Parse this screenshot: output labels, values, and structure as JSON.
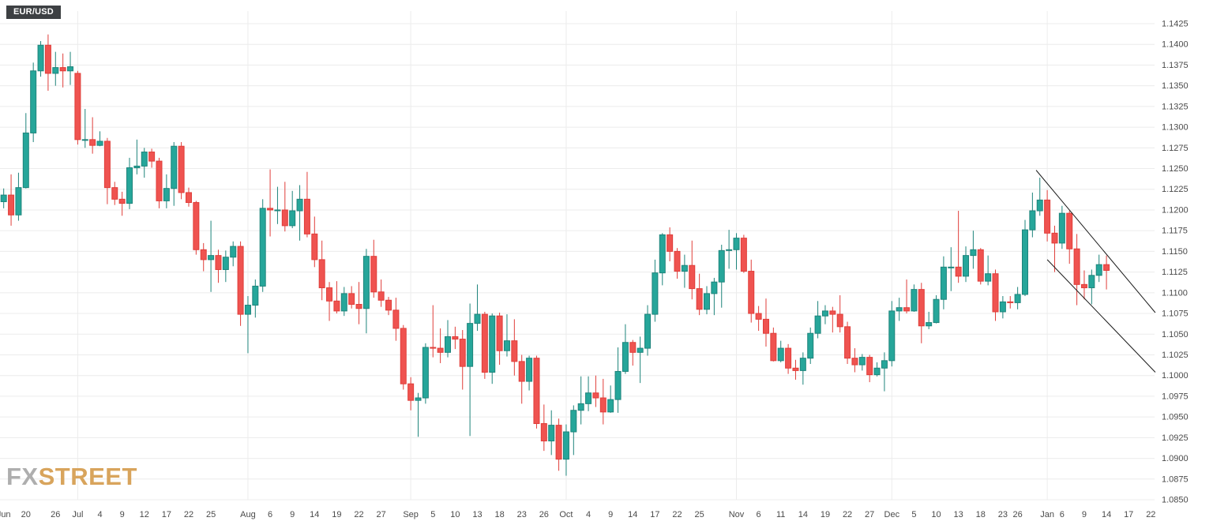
{
  "symbol_badge": {
    "label": "EUR/USD"
  },
  "watermark": {
    "part1": "FX",
    "part2": "STREET"
  },
  "colors": {
    "up": "#26a69a",
    "up_stroke": "#1e847b",
    "down": "#ef5350",
    "down_stroke": "#e03e3a",
    "grid": "#ececec",
    "axis_text": "#4a4a4a",
    "trendline": "#1a1a1a",
    "badge_bg": "#3d4043",
    "badge_text": "#ffffff",
    "watermark_fx": "#aeaeae",
    "watermark_street": "#d8a45c"
  },
  "chart_data": {
    "type": "candlestick",
    "title": "EUR/USD",
    "timeframe": "daily",
    "y_axis": {
      "min": 1.085,
      "max": 1.1425,
      "step": 0.0025,
      "labels": [
        "1.1425",
        "1.1400",
        "1.1375",
        "1.1350",
        "1.1325",
        "1.1300",
        "1.1275",
        "1.1250",
        "1.1225",
        "1.1200",
        "1.1175",
        "1.1150",
        "1.1125",
        "1.1100",
        "1.1075",
        "1.1050",
        "1.1025",
        "1.1000",
        "1.0975",
        "1.0950",
        "1.0925",
        "1.0900",
        "1.0875",
        "1.0850"
      ]
    },
    "total_slots": 156,
    "x_ticks": [
      [
        0,
        "Jun"
      ],
      [
        3,
        "20"
      ],
      [
        7,
        "26"
      ],
      [
        10,
        "Jul"
      ],
      [
        13,
        "4"
      ],
      [
        16,
        "9"
      ],
      [
        19,
        "12"
      ],
      [
        22,
        "17"
      ],
      [
        25,
        "22"
      ],
      [
        28,
        "25"
      ],
      [
        33,
        "Aug"
      ],
      [
        36,
        "6"
      ],
      [
        39,
        "9"
      ],
      [
        42,
        "14"
      ],
      [
        45,
        "19"
      ],
      [
        48,
        "22"
      ],
      [
        51,
        "27"
      ],
      [
        55,
        "Sep"
      ],
      [
        58,
        "5"
      ],
      [
        61,
        "10"
      ],
      [
        64,
        "13"
      ],
      [
        67,
        "18"
      ],
      [
        70,
        "23"
      ],
      [
        73,
        "26"
      ],
      [
        76,
        "Oct"
      ],
      [
        79,
        "4"
      ],
      [
        82,
        "9"
      ],
      [
        85,
        "14"
      ],
      [
        88,
        "17"
      ],
      [
        91,
        "22"
      ],
      [
        94,
        "25"
      ],
      [
        99,
        "Nov"
      ],
      [
        102,
        "6"
      ],
      [
        105,
        "11"
      ],
      [
        108,
        "14"
      ],
      [
        111,
        "19"
      ],
      [
        114,
        "22"
      ],
      [
        117,
        "27"
      ],
      [
        120,
        "Dec"
      ],
      [
        123,
        "5"
      ],
      [
        126,
        "10"
      ],
      [
        129,
        "13"
      ],
      [
        132,
        "18"
      ],
      [
        135,
        "23"
      ],
      [
        137,
        "26"
      ],
      [
        141,
        "Jan"
      ],
      [
        143,
        "6"
      ],
      [
        146,
        "9"
      ],
      [
        149,
        "14"
      ],
      [
        152,
        "17"
      ],
      [
        155,
        "22"
      ]
    ],
    "month_gridlines": [
      10,
      33,
      55,
      76,
      99,
      120,
      141
    ],
    "trendlines": [
      {
        "i1": 139.5,
        "p1": 1.1248,
        "i2": 155.6,
        "p2": 1.1076
      },
      {
        "i1": 141.0,
        "p1": 1.114,
        "i2": 155.6,
        "p2": 1.1004
      }
    ],
    "candles": [
      [
        "Jun 17",
        1.121,
        1.1226,
        1.1202,
        1.1218
      ],
      [
        "Jun 18",
        1.1218,
        1.1243,
        1.1181,
        1.1194
      ],
      [
        "Jun 19",
        1.1194,
        1.1245,
        1.1187,
        1.1227
      ],
      [
        "Jun 20",
        1.1227,
        1.1317,
        1.1226,
        1.1293
      ],
      [
        "Jun 21",
        1.1293,
        1.1378,
        1.1282,
        1.1368
      ],
      [
        "Jun 24",
        1.1368,
        1.1404,
        1.1361,
        1.1399
      ],
      [
        "Jun 25",
        1.1399,
        1.1412,
        1.1344,
        1.1365
      ],
      [
        "Jun 26",
        1.1365,
        1.1391,
        1.135,
        1.1372
      ],
      [
        "Jun 27",
        1.1372,
        1.1389,
        1.1348,
        1.1368
      ],
      [
        "Jun 28",
        1.1368,
        1.1391,
        1.1351,
        1.1373
      ],
      [
        "Jul 1",
        1.1365,
        1.1368,
        1.1279,
        1.1285
      ],
      [
        "Jul 2",
        1.1285,
        1.1322,
        1.1275,
        1.1285
      ],
      [
        "Jul 3",
        1.1285,
        1.1312,
        1.1268,
        1.1278
      ],
      [
        "Jul 4",
        1.1278,
        1.1295,
        1.1277,
        1.1283
      ],
      [
        "Jul 5",
        1.1283,
        1.1287,
        1.1207,
        1.1227
      ],
      [
        "Jul 8",
        1.1227,
        1.1234,
        1.1206,
        1.1213
      ],
      [
        "Jul 9",
        1.1213,
        1.1222,
        1.1193,
        1.1208
      ],
      [
        "Jul 10",
        1.1208,
        1.1263,
        1.1201,
        1.1251
      ],
      [
        "Jul 11",
        1.1251,
        1.1285,
        1.1243,
        1.1253
      ],
      [
        "Jul 12",
        1.1253,
        1.1275,
        1.1239,
        1.127
      ],
      [
        "Jul 15",
        1.127,
        1.1274,
        1.1251,
        1.1259
      ],
      [
        "Jul 16",
        1.1259,
        1.1263,
        1.1202,
        1.1211
      ],
      [
        "Jul 17",
        1.1211,
        1.1243,
        1.1202,
        1.1226
      ],
      [
        "Jul 18",
        1.1226,
        1.1282,
        1.1205,
        1.1277
      ],
      [
        "Jul 19",
        1.1277,
        1.1282,
        1.1213,
        1.1221
      ],
      [
        "Jul 22",
        1.1221,
        1.1227,
        1.1204,
        1.1209
      ],
      [
        "Jul 23",
        1.1209,
        1.1211,
        1.1146,
        1.1152
      ],
      [
        "Jul 24",
        1.1152,
        1.116,
        1.1126,
        1.114
      ],
      [
        "Jul 25",
        1.114,
        1.1187,
        1.1101,
        1.1145
      ],
      [
        "Jul 26",
        1.1145,
        1.1152,
        1.1112,
        1.1128
      ],
      [
        "Jul 29",
        1.1128,
        1.1151,
        1.1113,
        1.1143
      ],
      [
        "Jul 30",
        1.1143,
        1.1162,
        1.1132,
        1.1156
      ],
      [
        "Jul 31",
        1.1156,
        1.1162,
        1.106,
        1.1074
      ],
      [
        "Aug 1",
        1.1074,
        1.1096,
        1.1027,
        1.1085
      ],
      [
        "Aug 2",
        1.1085,
        1.1116,
        1.107,
        1.1108
      ],
      [
        "Aug 5",
        1.1108,
        1.1213,
        1.1101,
        1.1202
      ],
      [
        "Aug 6",
        1.1202,
        1.1249,
        1.1168,
        1.12
      ],
      [
        "Aug 7",
        1.12,
        1.1228,
        1.1183,
        1.12
      ],
      [
        "Aug 8",
        1.12,
        1.1234,
        1.1174,
        1.1181
      ],
      [
        "Aug 9",
        1.1181,
        1.1223,
        1.1178,
        1.1199
      ],
      [
        "Aug 12",
        1.1199,
        1.123,
        1.1163,
        1.1213
      ],
      [
        "Aug 13",
        1.1213,
        1.1246,
        1.1167,
        1.1171
      ],
      [
        "Aug 14",
        1.1171,
        1.1192,
        1.1131,
        1.114
      ],
      [
        "Aug 15",
        1.114,
        1.1163,
        1.1091,
        1.1106
      ],
      [
        "Aug 16",
        1.1106,
        1.1113,
        1.1066,
        1.109
      ],
      [
        "Aug 19",
        1.109,
        1.1114,
        1.1075,
        1.1078
      ],
      [
        "Aug 20",
        1.1078,
        1.1107,
        1.1072,
        1.1099
      ],
      [
        "Aug 21",
        1.1099,
        1.1108,
        1.1081,
        1.1086
      ],
      [
        "Aug 22",
        1.1086,
        1.1113,
        1.1062,
        1.1081
      ],
      [
        "Aug 23",
        1.1081,
        1.1153,
        1.1051,
        1.1144
      ],
      [
        "Aug 26",
        1.1144,
        1.1164,
        1.1094,
        1.1101
      ],
      [
        "Aug 27",
        1.1101,
        1.1116,
        1.1083,
        1.1091
      ],
      [
        "Aug 28",
        1.1091,
        1.1095,
        1.1073,
        1.1079
      ],
      [
        "Aug 29",
        1.1079,
        1.1094,
        1.1042,
        1.1057
      ],
      [
        "Aug 30",
        1.1057,
        1.1061,
        1.0983,
        1.099
      ],
      [
        "Sep 2",
        1.099,
        1.0998,
        1.0958,
        1.097
      ],
      [
        "Sep 3",
        1.097,
        1.0979,
        1.0926,
        1.0973
      ],
      [
        "Sep 4",
        1.0973,
        1.1039,
        1.0966,
        1.1034
      ],
      [
        "Sep 5",
        1.1034,
        1.1085,
        1.1022,
        1.1033
      ],
      [
        "Sep 6",
        1.1033,
        1.1057,
        1.1015,
        1.1028
      ],
      [
        "Sep 9",
        1.1028,
        1.1067,
        1.1022,
        1.1047
      ],
      [
        "Sep 10",
        1.1047,
        1.1059,
        1.1032,
        1.1044
      ],
      [
        "Sep 11",
        1.1044,
        1.1055,
        1.0983,
        1.1011
      ],
      [
        "Sep 12",
        1.1011,
        1.1087,
        1.0927,
        1.1063
      ],
      [
        "Sep 13",
        1.1063,
        1.111,
        1.1054,
        1.1074
      ],
      [
        "Sep 16",
        1.1074,
        1.1077,
        1.0996,
        1.1004
      ],
      [
        "Sep 17",
        1.1004,
        1.1075,
        1.099,
        1.1072
      ],
      [
        "Sep 18",
        1.1072,
        1.1076,
        1.1013,
        1.103
      ],
      [
        "Sep 19",
        1.103,
        1.1074,
        1.1023,
        1.1042
      ],
      [
        "Sep 20",
        1.1042,
        1.1068,
        1.1,
        1.1017
      ],
      [
        "Sep 23",
        1.1017,
        1.1025,
        1.0966,
        1.0993
      ],
      [
        "Sep 24",
        1.0993,
        1.1024,
        1.0982,
        1.1021
      ],
      [
        "Sep 25",
        1.1021,
        1.1024,
        1.0936,
        1.0942
      ],
      [
        "Sep 26",
        1.0942,
        1.0965,
        1.0909,
        1.0921
      ],
      [
        "Sep 27",
        1.0921,
        1.0958,
        1.0904,
        1.094
      ],
      [
        "Sep 30",
        1.094,
        1.0948,
        1.0885,
        1.0899
      ],
      [
        "Oct 1",
        1.0899,
        1.0941,
        1.0879,
        1.0932
      ],
      [
        "Oct 2",
        1.0932,
        1.0964,
        1.0904,
        1.0958
      ],
      [
        "Oct 3",
        1.0958,
        1.0999,
        1.0941,
        1.0966
      ],
      [
        "Oct 4",
        1.0966,
        1.0999,
        1.0957,
        1.0979
      ],
      [
        "Oct 7",
        1.0979,
        1.1,
        1.0962,
        1.0973
      ],
      [
        "Oct 8",
        1.0973,
        1.0996,
        1.0941,
        1.0956
      ],
      [
        "Oct 9",
        1.0956,
        1.0988,
        1.0955,
        1.0971
      ],
      [
        "Oct 10",
        1.0971,
        1.1034,
        1.0955,
        1.1005
      ],
      [
        "Oct 11",
        1.1005,
        1.1062,
        1.1002,
        1.104
      ],
      [
        "Oct 14",
        1.104,
        1.1043,
        1.1012,
        1.1028
      ],
      [
        "Oct 15",
        1.1028,
        1.1047,
        1.0991,
        1.1033
      ],
      [
        "Oct 16",
        1.1033,
        1.1085,
        1.1024,
        1.1074
      ],
      [
        "Oct 17",
        1.1074,
        1.114,
        1.1065,
        1.1124
      ],
      [
        "Oct 18",
        1.1124,
        1.1172,
        1.1109,
        1.117
      ],
      [
        "Oct 21",
        1.117,
        1.1179,
        1.1138,
        1.115
      ],
      [
        "Oct 22",
        1.115,
        1.1154,
        1.1117,
        1.1126
      ],
      [
        "Oct 23",
        1.1126,
        1.1146,
        1.1106,
        1.1133
      ],
      [
        "Oct 24",
        1.1133,
        1.1163,
        1.1092,
        1.1105
      ],
      [
        "Oct 25",
        1.1105,
        1.1123,
        1.1073,
        1.108
      ],
      [
        "Oct 28",
        1.108,
        1.1108,
        1.1074,
        1.1099
      ],
      [
        "Oct 29",
        1.1099,
        1.1118,
        1.1073,
        1.1113
      ],
      [
        "Oct 30",
        1.1113,
        1.1158,
        1.1082,
        1.1151
      ],
      [
        "Oct 31",
        1.1151,
        1.1176,
        1.1129,
        1.1152
      ],
      [
        "Nov 1",
        1.1152,
        1.1172,
        1.1128,
        1.1166
      ],
      [
        "Nov 4",
        1.1166,
        1.117,
        1.1124,
        1.1126
      ],
      [
        "Nov 5",
        1.1126,
        1.114,
        1.1064,
        1.1075
      ],
      [
        "Nov 6",
        1.1075,
        1.1084,
        1.1054,
        1.1068
      ],
      [
        "Nov 7",
        1.1068,
        1.1093,
        1.1035,
        1.1051
      ],
      [
        "Nov 8",
        1.1051,
        1.1058,
        1.1017,
        1.1018
      ],
      [
        "Nov 11",
        1.1018,
        1.1042,
        1.1016,
        1.1033
      ],
      [
        "Nov 12",
        1.1033,
        1.1038,
        1.1002,
        1.1009
      ],
      [
        "Nov 13",
        1.1009,
        1.1019,
        1.0995,
        1.1006
      ],
      [
        "Nov 14",
        1.1006,
        1.1028,
        1.0989,
        1.1021
      ],
      [
        "Nov 15",
        1.1021,
        1.1058,
        1.1014,
        1.1051
      ],
      [
        "Nov 18",
        1.1051,
        1.109,
        1.1045,
        1.1072
      ],
      [
        "Nov 19",
        1.1072,
        1.1085,
        1.1062,
        1.1078
      ],
      [
        "Nov 20",
        1.1078,
        1.1083,
        1.1052,
        1.1074
      ],
      [
        "Nov 21",
        1.1074,
        1.1097,
        1.1052,
        1.1059
      ],
      [
        "Nov 22",
        1.1059,
        1.1065,
        1.1014,
        1.1021
      ],
      [
        "Nov 25",
        1.1021,
        1.1033,
        1.1004,
        1.1013
      ],
      [
        "Nov 26",
        1.1013,
        1.1026,
        1.1006,
        1.1022
      ],
      [
        "Nov 27",
        1.1022,
        1.1025,
        1.0992,
        1.1001
      ],
      [
        "Nov 28",
        1.1001,
        1.1016,
        1.0999,
        1.1009
      ],
      [
        "Nov 29",
        1.1009,
        1.1028,
        1.0981,
        1.1018
      ],
      [
        "Dec 2",
        1.1018,
        1.109,
        1.1011,
        1.1078
      ],
      [
        "Dec 3",
        1.1078,
        1.1094,
        1.1066,
        1.1082
      ],
      [
        "Dec 4",
        1.1082,
        1.1116,
        1.1075,
        1.1078
      ],
      [
        "Dec 5",
        1.1078,
        1.111,
        1.1077,
        1.1104
      ],
      [
        "Dec 6",
        1.1104,
        1.1112,
        1.1039,
        1.106
      ],
      [
        "Dec 9",
        1.106,
        1.1077,
        1.1056,
        1.1064
      ],
      [
        "Dec 10",
        1.1064,
        1.1097,
        1.1063,
        1.1092
      ],
      [
        "Dec 11",
        1.1092,
        1.1144,
        1.108,
        1.1131
      ],
      [
        "Dec 12",
        1.1131,
        1.1155,
        1.1102,
        1.1131
      ],
      [
        "Dec 13",
        1.1131,
        1.1199,
        1.1112,
        1.112
      ],
      [
        "Dec 16",
        1.112,
        1.1156,
        1.1113,
        1.1145
      ],
      [
        "Dec 17",
        1.1145,
        1.1175,
        1.1129,
        1.1152
      ],
      [
        "Dec 18",
        1.1152,
        1.1154,
        1.111,
        1.1114
      ],
      [
        "Dec 19",
        1.1114,
        1.1145,
        1.1109,
        1.1123
      ],
      [
        "Dec 20",
        1.1123,
        1.1128,
        1.1066,
        1.1077
      ],
      [
        "Dec 23",
        1.1077,
        1.1096,
        1.1069,
        1.1089
      ],
      [
        "Dec 24",
        1.1089,
        1.1096,
        1.1081,
        1.1088
      ],
      [
        "Dec 26",
        1.1088,
        1.1107,
        1.108,
        1.1098
      ],
      [
        "Dec 27",
        1.1098,
        1.1188,
        1.1096,
        1.1176
      ],
      [
        "Dec 30",
        1.1176,
        1.1221,
        1.1167,
        1.1199
      ],
      [
        "Dec 31",
        1.1199,
        1.1239,
        1.1193,
        1.1212
      ],
      [
        "Jan 2",
        1.1212,
        1.1224,
        1.1162,
        1.1172
      ],
      [
        "Jan 3",
        1.1172,
        1.1181,
        1.1125,
        1.116
      ],
      [
        "Jan 6",
        1.116,
        1.1205,
        1.1153,
        1.1196
      ],
      [
        "Jan 7",
        1.1196,
        1.1199,
        1.1135,
        1.1153
      ],
      [
        "Jan 8",
        1.1153,
        1.1171,
        1.1085,
        1.111
      ],
      [
        "Jan 9",
        1.111,
        1.1127,
        1.1092,
        1.1106
      ],
      [
        "Jan 10",
        1.1106,
        1.1128,
        1.1086,
        1.1121
      ],
      [
        "Jan 13",
        1.1121,
        1.1146,
        1.1113,
        1.1134
      ],
      [
        "Jan 14",
        1.1134,
        1.1145,
        1.1104,
        1.1127
      ]
    ]
  }
}
